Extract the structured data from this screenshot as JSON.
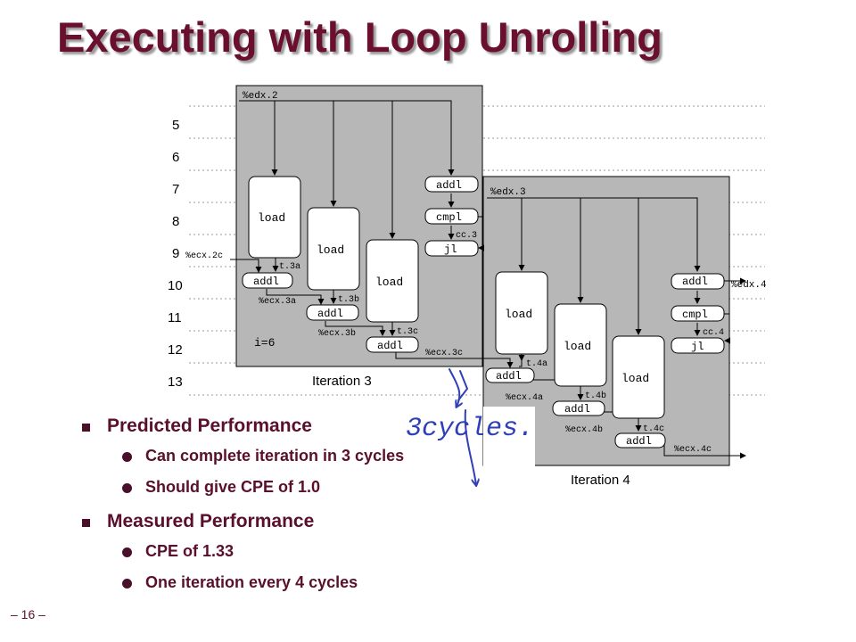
{
  "slide": {
    "title": "Executing with Loop Unrolling",
    "page_number": "– 16 –"
  },
  "bullets": [
    {
      "text": "Predicted Performance",
      "sub": [
        "Can complete iteration in 3 cycles",
        "Should give CPE of 1.0"
      ]
    },
    {
      "text": "Measured Performance",
      "sub": [
        "CPE of 1.33",
        "One iteration every 4 cycles"
      ]
    }
  ],
  "diagram": {
    "cycle_labels": [
      "5",
      "6",
      "7",
      "8",
      "9",
      "10",
      "11",
      "12",
      "13"
    ],
    "iteration3": {
      "caption": "Iteration 3",
      "in_reg": "%edx.2",
      "loads": [
        "load",
        "load",
        "load"
      ],
      "addl_ops": [
        "addl",
        "addl",
        "addl"
      ],
      "addl_edx": "addl",
      "cmpl": "cmpl",
      "jl": "jl",
      "in_ecx": "%ecx.2c",
      "temps": [
        "t.3a",
        "t.3b",
        "t.3c"
      ],
      "ecx_out": [
        "%ecx.3a",
        "%ecx.3b",
        "%ecx.3c"
      ],
      "cc": "cc.3",
      "index": "i=6"
    },
    "iteration4": {
      "caption": "Iteration 4",
      "in_reg": "%edx.3",
      "loads": [
        "load",
        "load",
        "load"
      ],
      "addl_ops": [
        "addl",
        "addl",
        "addl"
      ],
      "addl_edx": "addl",
      "cmpl": "cmpl",
      "jl": "jl",
      "temps": [
        "t.4a",
        "t.4b",
        "t.4c"
      ],
      "ecx_out": [
        "%ecx.4a",
        "%ecx.4b",
        "%ecx.4c"
      ],
      "cc": "cc.4",
      "edx_out": "%edx.4"
    },
    "annotation": "3cycles."
  },
  "colors": {
    "title": "#6b0f2e",
    "bullet_text": "#5a0f2c",
    "iteration_bg": "#b7b7b7",
    "handwriting": "#2f3fb5"
  }
}
